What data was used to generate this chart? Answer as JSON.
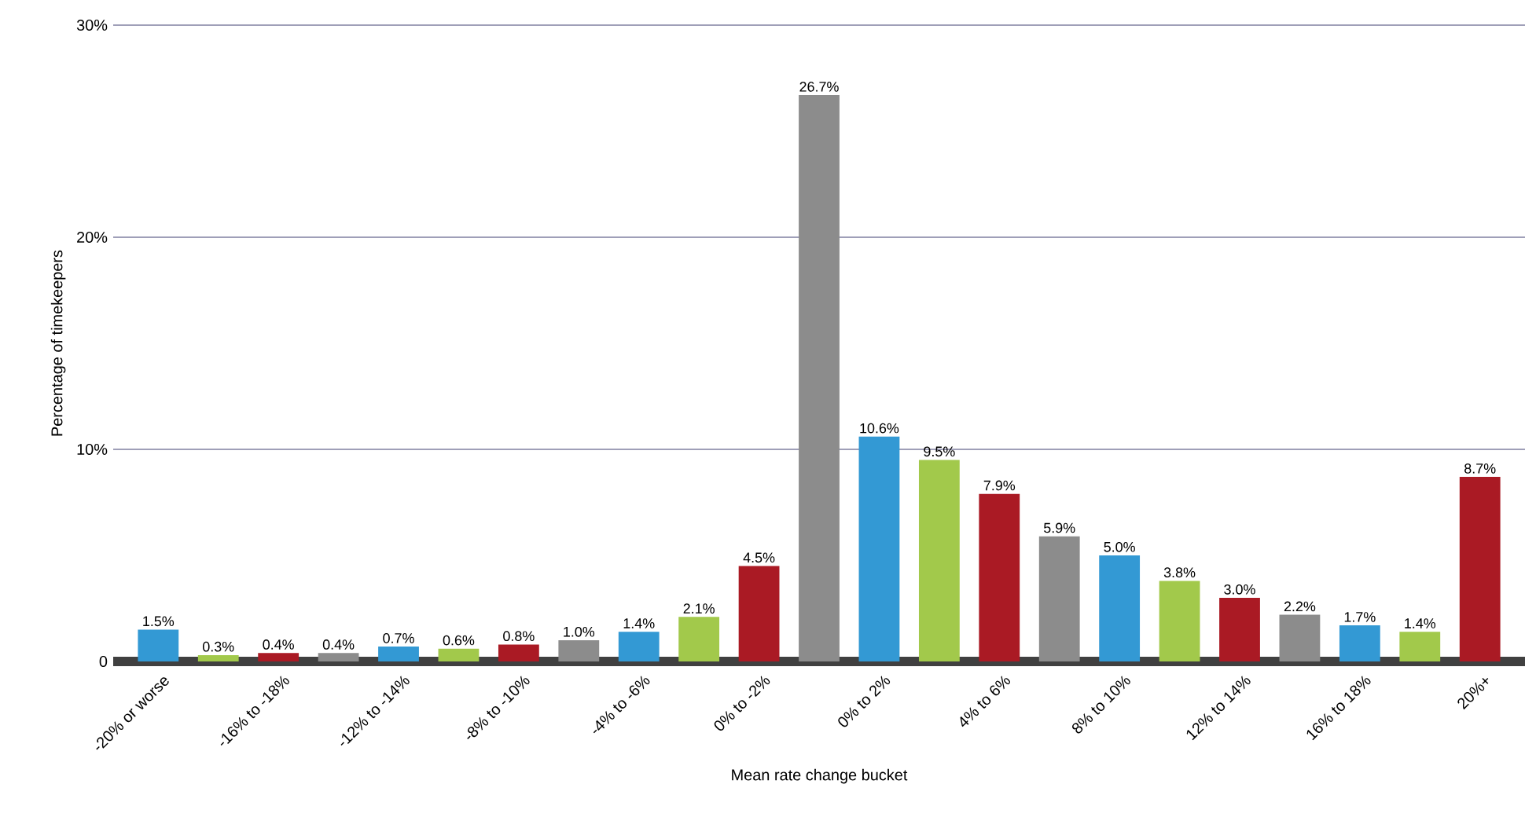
{
  "chart_data": {
    "type": "bar",
    "xlabel": "Mean rate change bucket",
    "ylabel": "Percentage of timekeepers",
    "categories": [
      "-20% or worse",
      null,
      "-16% to -18%",
      null,
      "-12% to -14%",
      null,
      "-8% to -10%",
      null,
      "-4% to -6%",
      null,
      "0% to -2%",
      null,
      "0% to 2%",
      null,
      "4% to 6%",
      null,
      "8% to 10%",
      null,
      "12% to 14%",
      null,
      "16% to 18%",
      null,
      "20%+"
    ],
    "values": [
      1.5,
      0.3,
      0.4,
      0.4,
      0.7,
      0.6,
      0.8,
      1.0,
      1.4,
      2.1,
      4.5,
      26.7,
      10.6,
      9.5,
      7.9,
      5.9,
      5.0,
      3.8,
      3.0,
      2.2,
      1.7,
      1.4,
      8.7
    ],
    "value_labels": [
      "1.5%",
      "0.3%",
      "0.4%",
      "0.4%",
      "0.7%",
      "0.6%",
      "0.8%",
      "1.0%",
      "1.4%",
      "2.1%",
      "4.5%",
      "26.7%",
      "10.6%",
      "9.5%",
      "7.9%",
      "5.9%",
      "5.0%",
      "3.8%",
      "3.0%",
      "2.2%",
      "1.7%",
      "1.4%",
      "8.7%"
    ],
    "colors": [
      "#3399d4",
      "#a2c94b",
      "#aa1a24",
      "#8c8c8c",
      "#3399d4",
      "#a2c94b",
      "#aa1a24",
      "#8c8c8c",
      "#3399d4",
      "#a2c94b",
      "#aa1a24",
      "#8c8c8c",
      "#3399d4",
      "#a2c94b",
      "#aa1a24",
      "#8c8c8c",
      "#3399d4",
      "#a2c94b",
      "#aa1a24",
      "#8c8c8c",
      "#3399d4",
      "#a2c94b",
      "#aa1a24"
    ],
    "ylim": [
      0,
      30
    ],
    "yticks": [
      0,
      {
        "value": 10,
        "label": "10%"
      },
      {
        "value": 20,
        "label": "20%"
      },
      {
        "value": 30,
        "label": "30%"
      }
    ],
    "grid": "y"
  }
}
